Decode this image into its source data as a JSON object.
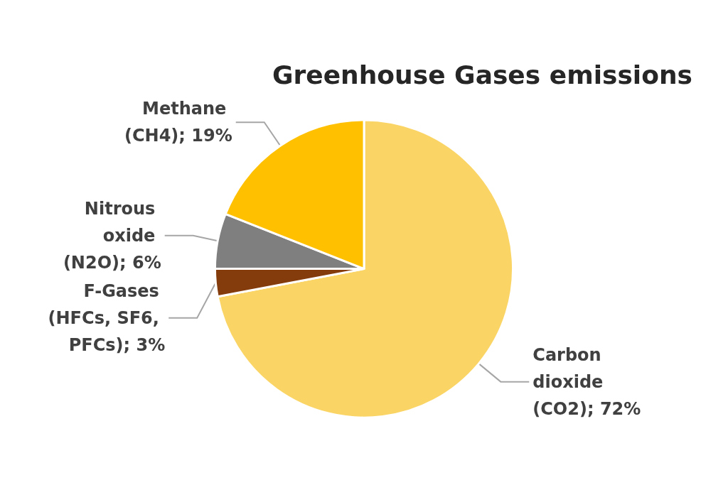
{
  "chart_data": {
    "type": "pie",
    "title": "Greenhouse Gases emissions",
    "categories": [
      "Carbon dioxide (CO2); 72%",
      "F-Gases (HFCs, SF6, PFCs); 3%",
      "Nitrous oxide (N2O); 6%",
      "Methane (CH4); 19%"
    ],
    "values": [
      72,
      3,
      6,
      19
    ],
    "colors": [
      "#fad565",
      "#843c0c",
      "#7f7f7f",
      "#ffc000"
    ],
    "legend": false
  }
}
